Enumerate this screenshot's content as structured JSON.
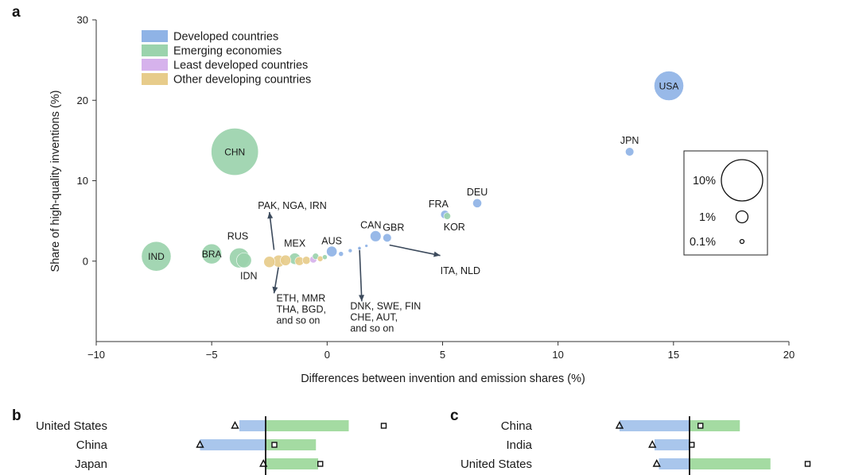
{
  "panels": {
    "a": "a",
    "b": "b",
    "c": "c"
  },
  "colors": {
    "developed": "#8fb3e6",
    "emerging": "#9bd3ad",
    "least": "#d6b2ec",
    "other": "#e7cc8b",
    "bar_blue": "#a9c6ec",
    "bar_green": "#a4dba2"
  },
  "chart_data": [
    {
      "id": "a",
      "type": "scatter",
      "subtype": "bubble",
      "xlabel": "Differences between invention and emission shares (%)",
      "ylabel": "Share of high-quality inventions (%)",
      "xlim": [
        -10,
        20
      ],
      "ylim": [
        -10,
        30
      ],
      "xticks": [
        -10,
        -5,
        0,
        5,
        10,
        15,
        20
      ],
      "yticks": [
        0,
        10,
        20,
        30
      ],
      "xtick_labels": [
        "−10",
        "−5",
        "0",
        "5",
        "10",
        "15",
        "20"
      ],
      "ytick_labels": [
        "0",
        "10",
        "20",
        "30"
      ],
      "legend": {
        "position": "top-left",
        "entries": [
          {
            "name": "Developed countries",
            "group": "developed"
          },
          {
            "name": "Emerging economies",
            "group": "emerging"
          },
          {
            "name": "Least developed countries",
            "group": "least"
          },
          {
            "name": "Other developing countries",
            "group": "other"
          }
        ]
      },
      "size_legend": {
        "position": "right",
        "entries": [
          {
            "label": "10%",
            "share": 10
          },
          {
            "label": "1%",
            "share": 1
          },
          {
            "label": "0.1%",
            "share": 0.1
          }
        ]
      },
      "points": [
        {
          "label": "USA",
          "x": 14.8,
          "y": 21.8,
          "share": 11,
          "group": "developed",
          "label_inside": true
        },
        {
          "label": "JPN",
          "x": 13.1,
          "y": 13.6,
          "share": 0.9,
          "group": "developed"
        },
        {
          "label": "DEU",
          "x": 6.5,
          "y": 7.2,
          "share": 1.0,
          "group": "developed"
        },
        {
          "label": "FRA",
          "x": 5.1,
          "y": 5.8,
          "share": 0.9,
          "group": "developed"
        },
        {
          "label": "KOR",
          "x": 5.2,
          "y": 5.6,
          "share": 0.6,
          "group": "emerging"
        },
        {
          "label": "CAN",
          "x": 2.1,
          "y": 3.1,
          "share": 1.5,
          "group": "developed"
        },
        {
          "label": "GBR",
          "x": 2.6,
          "y": 2.9,
          "share": 0.9,
          "group": "developed"
        },
        {
          "label": "AUS",
          "x": 0.2,
          "y": 1.2,
          "share": 1.4,
          "group": "developed"
        },
        {
          "label": "CHN",
          "x": -4.0,
          "y": 13.6,
          "share": 28,
          "group": "emerging",
          "label_inside": true
        },
        {
          "label": "IND",
          "x": -7.4,
          "y": 0.6,
          "share": 11,
          "group": "emerging",
          "label_inside": true
        },
        {
          "label": "BRA",
          "x": -5.0,
          "y": 0.9,
          "share": 5,
          "group": "emerging",
          "label_inside": true
        },
        {
          "label": "RUS",
          "x": -3.8,
          "y": 0.4,
          "share": 5,
          "group": "emerging"
        },
        {
          "label": "IDN",
          "x": -3.6,
          "y": 0.1,
          "share": 2.8,
          "group": "emerging"
        },
        {
          "label": "MEX",
          "x": -1.4,
          "y": 0.3,
          "share": 1.6,
          "group": "emerging"
        },
        {
          "label": "",
          "x": -2.1,
          "y": 0.0,
          "share": 1.8,
          "group": "other"
        },
        {
          "label": "",
          "x": -2.5,
          "y": -0.1,
          "share": 1.6,
          "group": "other"
        },
        {
          "label": "",
          "x": -1.8,
          "y": 0.1,
          "share": 1.4,
          "group": "other"
        },
        {
          "label": "",
          "x": -1.2,
          "y": 0.0,
          "share": 1.0,
          "group": "other"
        },
        {
          "label": "",
          "x": -0.9,
          "y": 0.1,
          "share": 0.8,
          "group": "other"
        },
        {
          "label": "",
          "x": -0.6,
          "y": 0.2,
          "share": 0.6,
          "group": "least"
        },
        {
          "label": "",
          "x": -0.3,
          "y": 0.3,
          "share": 0.4,
          "group": "other"
        },
        {
          "label": "",
          "x": -0.1,
          "y": 0.5,
          "share": 0.3,
          "group": "emerging"
        },
        {
          "label": "",
          "x": -0.5,
          "y": 0.6,
          "share": 0.5,
          "group": "emerging"
        },
        {
          "label": "",
          "x": 0.6,
          "y": 0.9,
          "share": 0.3,
          "group": "developed"
        },
        {
          "label": "",
          "x": 1.0,
          "y": 1.3,
          "share": 0.2,
          "group": "developed"
        },
        {
          "label": "",
          "x": 1.4,
          "y": 1.6,
          "share": 0.15,
          "group": "developed"
        },
        {
          "label": "",
          "x": 1.7,
          "y": 1.9,
          "share": 0.12,
          "group": "developed"
        }
      ],
      "annotations": [
        {
          "text": [
            "PAK, NGA, IRN"
          ],
          "from": [
            -2.3,
            1.4
          ],
          "to": [
            -2.5,
            6.1
          ],
          "text_at": [
            -3.0,
            6.5
          ]
        },
        {
          "text": [
            "ETH, MMR",
            "THA, BGD,",
            "and so on"
          ],
          "from": [
            -2.1,
            -0.6
          ],
          "to": [
            -2.3,
            -4.0
          ],
          "text_at": [
            -2.2,
            -5.0
          ]
        },
        {
          "text": [
            "DNK, SWE, FIN",
            "CHE, AUT,",
            "and so on"
          ],
          "from": [
            1.4,
            1.7
          ],
          "to": [
            1.5,
            -5.0
          ],
          "text_at": [
            1.0,
            -6.0
          ]
        },
        {
          "text": [
            "ITA, NLD"
          ],
          "from": [
            2.7,
            2.0
          ],
          "to": [
            4.9,
            0.7
          ],
          "text_at": [
            4.9,
            -1.6
          ]
        }
      ]
    },
    {
      "id": "b",
      "type": "bar",
      "orientation": "horizontal",
      "categories": [
        "United States",
        "China",
        "Japan"
      ],
      "series": [
        {
          "values": [
            -1.2,
            -3.0,
            0
          ],
          "color": "bar_blue"
        },
        {
          "values": [
            3.8,
            2.3,
            2.4
          ],
          "color": "bar_green"
        }
      ],
      "triangle_markers": [
        -1.4,
        -3.0,
        -0.1
      ],
      "square_markers": [
        5.4,
        0.4,
        2.5
      ]
    },
    {
      "id": "c",
      "type": "bar",
      "orientation": "horizontal",
      "categories": [
        "China",
        "India",
        "United States"
      ],
      "series": [
        {
          "values": [
            -3.2,
            -1.6,
            -1.4
          ],
          "color": "bar_blue"
        },
        {
          "values": [
            2.3,
            0,
            3.7
          ],
          "color": "bar_green"
        }
      ],
      "triangle_markers": [
        -3.2,
        -1.7,
        -1.5
      ],
      "square_markers": [
        0.5,
        0.1,
        5.4
      ]
    }
  ]
}
